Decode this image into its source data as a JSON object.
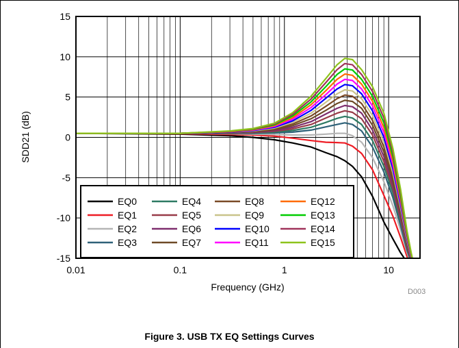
{
  "figure_code": "D003",
  "caption": "Figure 3. USB TX EQ Settings Curves",
  "chart_data": {
    "type": "line",
    "xlabel": "Frequency (GHz)",
    "ylabel": "SDD21 (dB)",
    "xscale": "log",
    "xlim": [
      0.01,
      20
    ],
    "ylim": [
      -15,
      15
    ],
    "xticks": [
      0.01,
      0.1,
      1,
      10
    ],
    "xtick_labels": [
      "0.01",
      "0.1",
      "1",
      "10"
    ],
    "yticks": [
      -15,
      -10,
      -5,
      0,
      5,
      10,
      15
    ],
    "yticks_labels": [
      "-15",
      "-10",
      "-5",
      "0",
      "5",
      "10",
      "15"
    ],
    "grid": true,
    "legend_position": "bottom-left",
    "legend_columns": 4,
    "x": [
      0.01,
      0.1,
      0.3,
      0.5,
      0.8,
      1.2,
      1.8,
      2.5,
      3.2,
      3.8,
      4.5,
      5.5,
      7,
      9,
      11,
      13,
      15,
      16.5,
      18
    ],
    "series": [
      {
        "name": "EQ0",
        "color": "#000000",
        "values": [
          0.5,
          0.4,
          0.2,
          0.0,
          -0.3,
          -0.7,
          -1.2,
          -1.9,
          -2.4,
          -2.9,
          -3.6,
          -4.9,
          -7.3,
          -10.5,
          -12.6,
          -14.3,
          -15.5,
          -16,
          -16.5
        ]
      },
      {
        "name": "EQ1",
        "color": "#ee1c24",
        "values": [
          0.5,
          0.45,
          0.35,
          0.3,
          0.15,
          -0.1,
          -0.4,
          -0.6,
          -0.65,
          -0.7,
          -1.1,
          -2.0,
          -4.0,
          -7.2,
          -9.8,
          -12.4,
          -14.8,
          -16,
          -16.5
        ]
      },
      {
        "name": "EQ2",
        "color": "#b5b5b5",
        "values": [
          0.5,
          0.5,
          0.45,
          0.4,
          0.35,
          0.3,
          0.3,
          0.4,
          0.5,
          0.5,
          0.2,
          -0.6,
          -2.5,
          -5.5,
          -8.5,
          -11.5,
          -14.3,
          -15.8,
          -16.5
        ]
      },
      {
        "name": "EQ3",
        "color": "#2e6178",
        "values": [
          0.5,
          0.5,
          0.5,
          0.5,
          0.55,
          0.65,
          0.9,
          1.3,
          1.6,
          1.8,
          1.6,
          0.8,
          -1.2,
          -4.3,
          -7.5,
          -10.9,
          -14.0,
          -15.6,
          -16.5
        ]
      },
      {
        "name": "EQ4",
        "color": "#2d7a63",
        "values": [
          0.5,
          0.5,
          0.5,
          0.55,
          0.65,
          0.85,
          1.25,
          1.85,
          2.35,
          2.6,
          2.4,
          1.6,
          -0.4,
          -3.6,
          -6.9,
          -10.5,
          -13.8,
          -15.5,
          -16.5
        ]
      },
      {
        "name": "EQ5",
        "color": "#983b48",
        "values": [
          0.5,
          0.5,
          0.55,
          0.6,
          0.75,
          1.05,
          1.6,
          2.4,
          3.0,
          3.3,
          3.1,
          2.3,
          0.3,
          -3.0,
          -6.4,
          -10.1,
          -13.6,
          -15.4,
          -16.5
        ]
      },
      {
        "name": "EQ6",
        "color": "#7e2e6e",
        "values": [
          0.5,
          0.5,
          0.55,
          0.65,
          0.85,
          1.25,
          1.95,
          2.9,
          3.6,
          3.95,
          3.8,
          3.0,
          0.9,
          -2.4,
          -5.9,
          -9.8,
          -13.4,
          -15.3,
          -16.5
        ]
      },
      {
        "name": "EQ7",
        "color": "#6e4a27",
        "values": [
          0.5,
          0.5,
          0.6,
          0.7,
          0.95,
          1.45,
          2.3,
          3.35,
          4.2,
          4.6,
          4.45,
          3.6,
          1.5,
          -1.8,
          -5.4,
          -9.4,
          -13.2,
          -15.2,
          -16.5
        ]
      },
      {
        "name": "EQ8",
        "color": "#7a4a26",
        "values": [
          0.5,
          0.5,
          0.6,
          0.75,
          1.05,
          1.65,
          2.65,
          3.85,
          4.8,
          5.25,
          5.1,
          4.2,
          2.1,
          -1.2,
          -4.9,
          -9.1,
          -13.0,
          -15.1,
          -16.5
        ]
      },
      {
        "name": "EQ9",
        "color": "#c9c38a",
        "values": [
          0.5,
          0.5,
          0.65,
          0.8,
          1.15,
          1.85,
          3.0,
          4.35,
          5.4,
          5.9,
          5.75,
          4.8,
          2.7,
          -0.6,
          -4.4,
          -8.7,
          -12.8,
          -15.0,
          -16.5
        ]
      },
      {
        "name": "EQ10",
        "color": "#0000ff",
        "values": [
          0.5,
          0.5,
          0.65,
          0.85,
          1.25,
          2.05,
          3.35,
          4.85,
          6.0,
          6.55,
          6.4,
          5.4,
          3.3,
          0.0,
          -3.9,
          -8.3,
          -12.6,
          -14.9,
          -16.5
        ]
      },
      {
        "name": "EQ11",
        "color": "#ff00ff",
        "values": [
          0.5,
          0.5,
          0.7,
          0.9,
          1.35,
          2.25,
          3.7,
          5.3,
          6.6,
          7.2,
          7.05,
          6.0,
          3.9,
          0.6,
          -3.4,
          -7.9,
          -12.4,
          -14.8,
          -16.5
        ]
      },
      {
        "name": "EQ12",
        "color": "#ff6a00",
        "values": [
          0.5,
          0.5,
          0.7,
          0.95,
          1.45,
          2.45,
          4.05,
          5.8,
          7.2,
          7.85,
          7.7,
          6.6,
          4.5,
          1.2,
          -2.9,
          -7.6,
          -12.2,
          -14.7,
          -16.5
        ]
      },
      {
        "name": "EQ13",
        "color": "#00cc00",
        "values": [
          0.5,
          0.5,
          0.75,
          1.0,
          1.55,
          2.65,
          4.4,
          6.3,
          7.8,
          8.5,
          8.35,
          7.2,
          5.1,
          1.8,
          -2.4,
          -7.2,
          -12.0,
          -14.6,
          -16.5
        ]
      },
      {
        "name": "EQ14",
        "color": "#a0335a",
        "values": [
          0.5,
          0.5,
          0.75,
          1.05,
          1.65,
          2.85,
          4.75,
          6.8,
          8.4,
          9.15,
          9.0,
          7.8,
          5.7,
          2.4,
          -1.9,
          -6.8,
          -11.8,
          -14.5,
          -16.5
        ]
      },
      {
        "name": "EQ15",
        "color": "#8dc31b",
        "values": [
          0.5,
          0.5,
          0.8,
          1.1,
          1.75,
          3.05,
          5.1,
          7.3,
          9.0,
          9.8,
          9.65,
          8.4,
          6.3,
          3.0,
          -1.4,
          -6.4,
          -11.6,
          -14.4,
          -16.5
        ]
      }
    ]
  }
}
